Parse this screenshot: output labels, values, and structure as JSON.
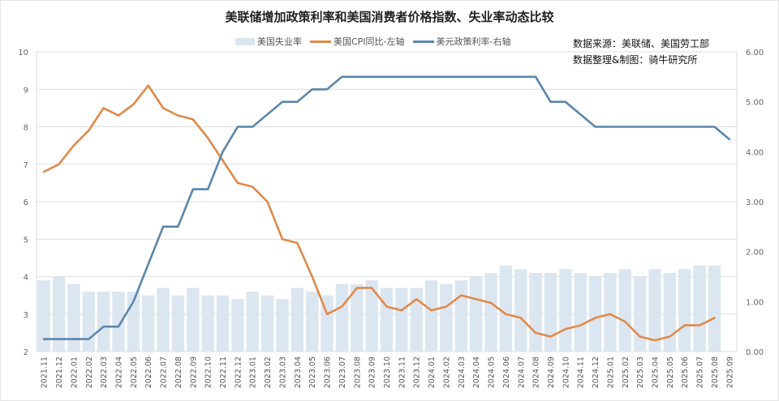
{
  "title": "美联储增加政策利率和美国消费者价格指数、失业率动态比较",
  "legend": [
    {
      "label": "美国失业率",
      "type": "bar",
      "color": "#dce6f1"
    },
    {
      "label": "美国CPI同比-左轴",
      "type": "line",
      "color": "#e08a4a"
    },
    {
      "label": "美元政策利率-右轴",
      "type": "line",
      "color": "#5b86ad"
    }
  ],
  "source": {
    "line1": "数据来源：美联储、美国劳工部",
    "line2": "数据整理&制图：骑牛研究所"
  },
  "chart_data": {
    "type": "bar+line",
    "title": "美联储增加政策利率和美国消费者价格指数、失业率动态比较",
    "xlabel": "",
    "left_axis": {
      "label": "",
      "ylim": [
        2,
        10
      ],
      "ticks": [
        "2",
        "3",
        "4",
        "5",
        "6",
        "7",
        "8",
        "9",
        "10"
      ]
    },
    "right_axis": {
      "label": "",
      "ylim": [
        0,
        6
      ],
      "ticks": [
        "0.00",
        "1.00",
        "2.00",
        "3.00",
        "4.00",
        "5.00",
        "6.00"
      ]
    },
    "grid": true,
    "legend_position": "top",
    "categories": [
      "2021.11",
      "2021.12",
      "2022.01",
      "2022.02",
      "2022.03",
      "2022.04",
      "2022.05",
      "2022.06",
      "2022.07",
      "2022.08",
      "2022.09",
      "2022.10",
      "2022.11",
      "2022.12",
      "2023.01",
      "2023.02",
      "2023.03",
      "2023.04",
      "2023.05",
      "2023.06",
      "2023.07",
      "2023.08",
      "2023.09",
      "2023.10",
      "2023.11",
      "2023.12",
      "2024.01",
      "2024.02",
      "2024.03",
      "2024.04",
      "2024.05",
      "2024.06",
      "2024.07",
      "2024.08",
      "2024.09",
      "2024.10",
      "2024.11",
      "2024.12",
      "2025.01",
      "2025.02",
      "2025.03",
      "2025.04",
      "2025.05",
      "2025.06",
      "2025.07",
      "2025.08",
      "2025.09"
    ],
    "series": [
      {
        "name": "美国失业率",
        "type": "bar",
        "axis": "left",
        "values": [
          3.9,
          4.0,
          3.8,
          3.6,
          3.6,
          3.6,
          3.6,
          3.5,
          3.7,
          3.5,
          3.7,
          3.5,
          3.5,
          3.4,
          3.6,
          3.5,
          3.4,
          3.7,
          3.6,
          3.5,
          3.8,
          3.8,
          3.9,
          3.7,
          3.7,
          3.7,
          3.9,
          3.8,
          3.9,
          4.0,
          4.1,
          4.3,
          4.2,
          4.1,
          4.1,
          4.2,
          4.1,
          4.0,
          4.1,
          4.2,
          4.0,
          4.2,
          4.1,
          4.2,
          4.3,
          4.3,
          null
        ]
      },
      {
        "name": "美国CPI同比-左轴",
        "type": "line",
        "axis": "left",
        "values": [
          6.8,
          7.0,
          7.5,
          7.9,
          8.5,
          8.3,
          8.6,
          9.1,
          8.5,
          8.3,
          8.2,
          7.7,
          7.1,
          6.5,
          6.4,
          6.0,
          5.0,
          4.9,
          4.0,
          3.0,
          3.2,
          3.7,
          3.7,
          3.2,
          3.1,
          3.4,
          3.1,
          3.2,
          3.5,
          3.4,
          3.3,
          3.0,
          2.9,
          2.5,
          2.4,
          2.6,
          2.7,
          2.9,
          3.0,
          2.8,
          2.4,
          2.3,
          2.4,
          2.7,
          2.7,
          2.9,
          null
        ]
      },
      {
        "name": "美元政策利率-右轴",
        "type": "line",
        "axis": "right",
        "values": [
          0.25,
          0.25,
          0.25,
          0.25,
          0.5,
          0.5,
          1.0,
          1.75,
          2.5,
          2.5,
          3.25,
          3.25,
          4.0,
          4.5,
          4.5,
          4.75,
          5.0,
          5.0,
          5.25,
          5.25,
          5.5,
          5.5,
          5.5,
          5.5,
          5.5,
          5.5,
          5.5,
          5.5,
          5.5,
          5.5,
          5.5,
          5.5,
          5.5,
          5.5,
          5.0,
          5.0,
          4.75,
          4.5,
          4.5,
          4.5,
          4.5,
          4.5,
          4.5,
          4.5,
          4.5,
          4.5,
          4.25
        ]
      }
    ]
  }
}
